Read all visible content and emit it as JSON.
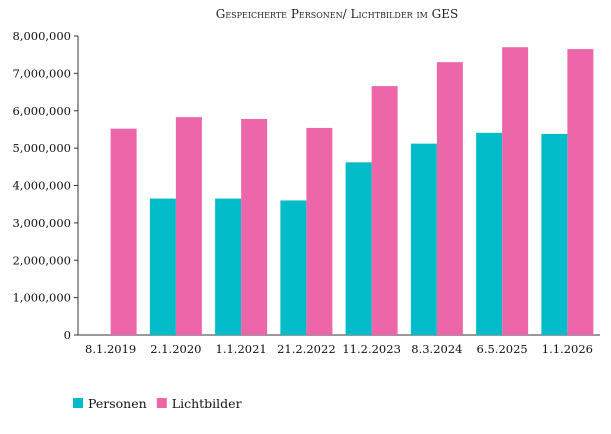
{
  "chart_data": {
    "type": "bar",
    "title": "Gespeicherte Personen/ Lichtbilder im GES",
    "xlabel": "",
    "ylabel": "",
    "categories": [
      "8.1.2019",
      "2.1.2020",
      "1.1.2021",
      "21.2.2022",
      "11.2.2023",
      "8.3.2024",
      "6.5.2025",
      "1.1.2026"
    ],
    "series": [
      {
        "name": "Personen",
        "color": "#00bcc8",
        "values": [
          null,
          3650000,
          3650000,
          3600000,
          4620000,
          5120000,
          5410000,
          5380000
        ]
      },
      {
        "name": "Lichtbilder",
        "color": "#ee66aa",
        "values": [
          5520000,
          5830000,
          5780000,
          5540000,
          6660000,
          7300000,
          7700000,
          7650000
        ]
      }
    ],
    "ylim": [
      0,
      8000000
    ],
    "yticks": [
      "0",
      "1,000,000",
      "2,000,000",
      "3,000,000",
      "4,000,000",
      "5,000,000",
      "6,000,000",
      "7,000,000",
      "8,000,000"
    ],
    "grid": false,
    "legend": "bottom-left"
  }
}
